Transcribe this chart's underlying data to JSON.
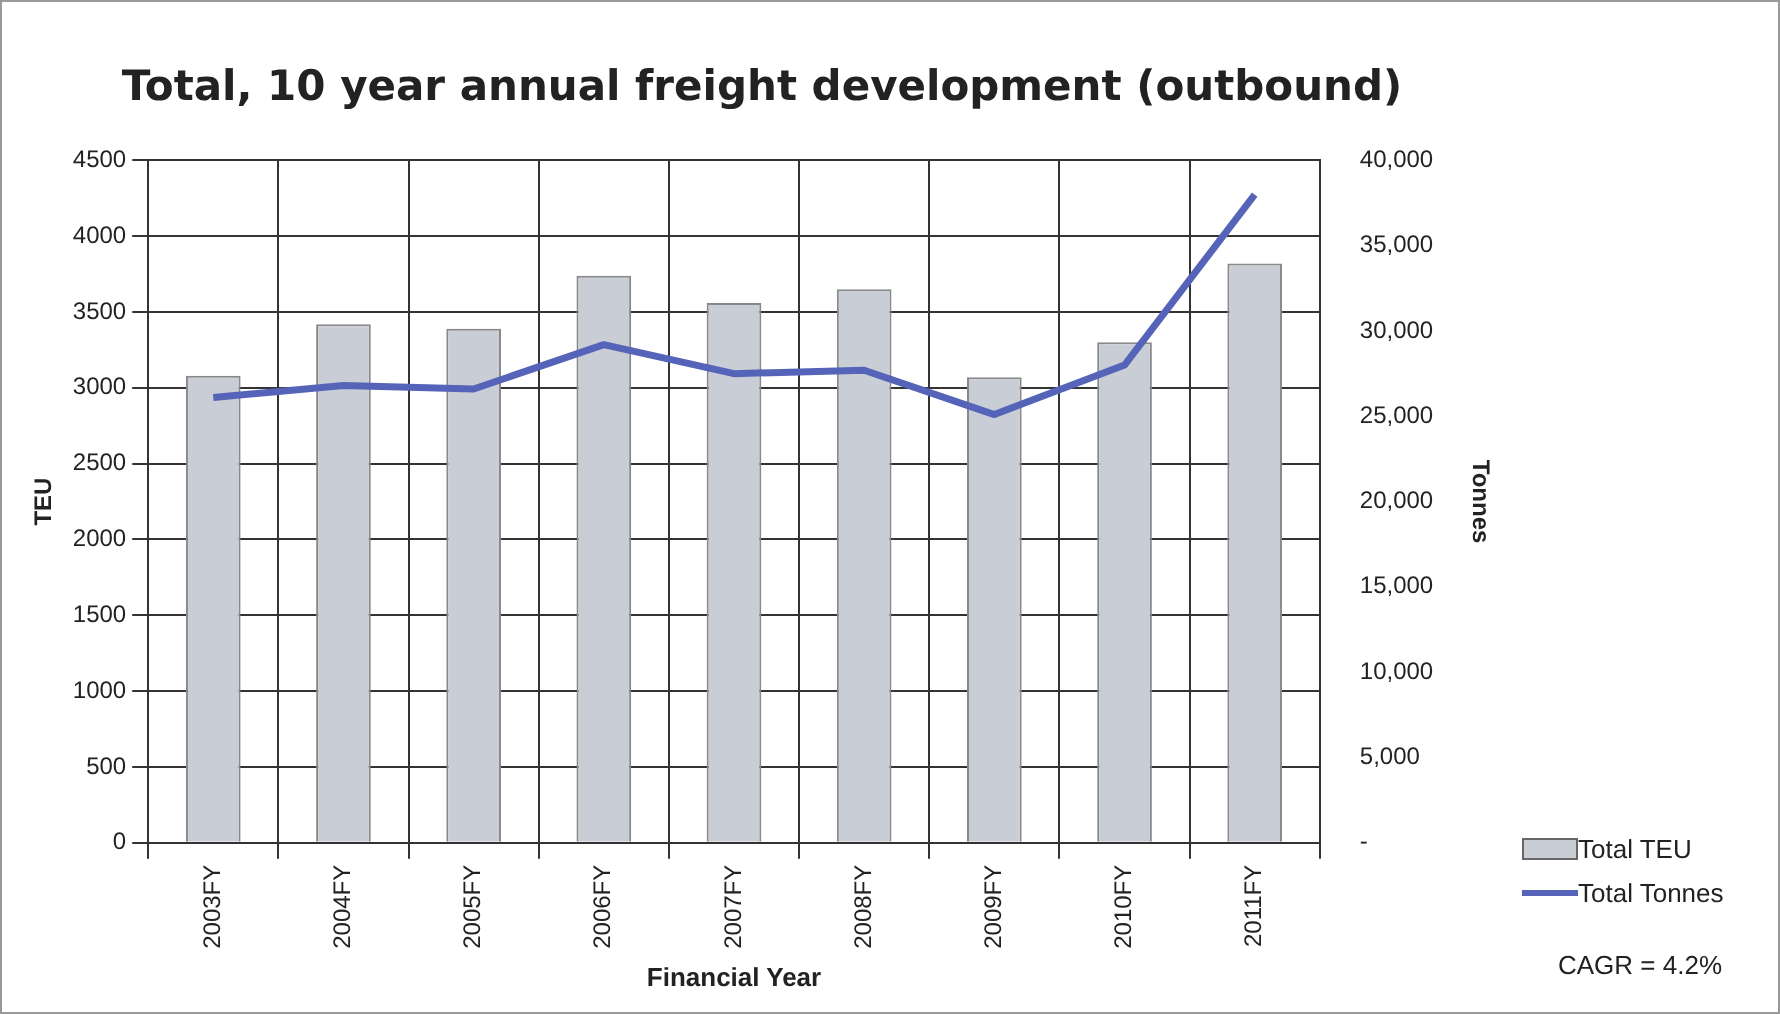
{
  "chart_data": {
    "type": "bar",
    "title": "Total, 10 year annual freight development (outbound)",
    "xlabel": "Financial Year",
    "ylabel": "TEU",
    "y2label": "Tonnes",
    "categories": [
      "2003FY",
      "2004FY",
      "2005FY",
      "2006FY",
      "2007FY",
      "2008FY",
      "2009FY",
      "2010FY",
      "2011FY"
    ],
    "series": [
      {
        "name": "Total TEU",
        "color": "#c9cdd6",
        "values": [
          3080,
          3420,
          3390,
          3740,
          3560,
          3650,
          3070,
          3300,
          3820
        ]
      },
      {
        "name": "Total Tonnes",
        "type": "line",
        "axis": "y2",
        "color": "#5564b8",
        "values": [
          26100,
          26800,
          26600,
          29200,
          27500,
          27700,
          25100,
          28000,
          38000
        ]
      }
    ],
    "ylim": [
      0,
      4500
    ],
    "yticks": [
      0,
      500,
      1000,
      1500,
      2000,
      2500,
      3000,
      3500,
      4000,
      4500
    ],
    "y2lim": [
      0,
      40000
    ],
    "y2ticks": [
      {
        "value": 0,
        "label": "-"
      },
      {
        "value": 5000,
        "label": "5,000"
      },
      {
        "value": 10000,
        "label": "10,000"
      },
      {
        "value": 15000,
        "label": "15,000"
      },
      {
        "value": 20000,
        "label": "20,000"
      },
      {
        "value": 25000,
        "label": "25,000"
      },
      {
        "value": 30000,
        "label": "30,000"
      },
      {
        "value": 35000,
        "label": "35,000"
      },
      {
        "value": 40000,
        "label": "40,000"
      }
    ],
    "grid": true,
    "legend": "bottom right",
    "marker": "none",
    "annotations": [
      "CAGR = 4.2%"
    ]
  }
}
